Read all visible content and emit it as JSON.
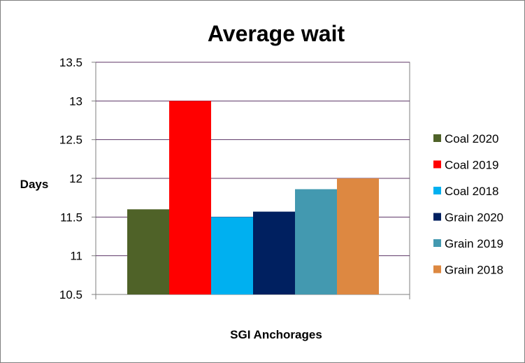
{
  "chart_data": {
    "type": "bar",
    "title": "Average wait",
    "xlabel": "SGI Anchorages",
    "ylabel": "Days",
    "ylim": [
      10.5,
      13.5
    ],
    "yticks": [
      "10.5",
      "11",
      "11.5",
      "12",
      "12.5",
      "13",
      "13.5"
    ],
    "grid": true,
    "legend_position": "right",
    "categories": [
      "SGI Anchorages"
    ],
    "series": [
      {
        "name": "Coal 2020",
        "values": [
          11.6
        ],
        "color": "#4f6228"
      },
      {
        "name": "Coal 2019",
        "values": [
          13.0
        ],
        "color": "#ff0000"
      },
      {
        "name": "Coal 2018",
        "values": [
          11.5
        ],
        "color": "#00b0f0"
      },
      {
        "name": "Grain 2020",
        "values": [
          11.57
        ],
        "color": "#002060"
      },
      {
        "name": "Grain 2019",
        "values": [
          11.86
        ],
        "color": "#4399b0"
      },
      {
        "name": "Grain 2018",
        "values": [
          12.0
        ],
        "color": "#dd8841"
      }
    ],
    "gridline_color": "#5c3566"
  }
}
